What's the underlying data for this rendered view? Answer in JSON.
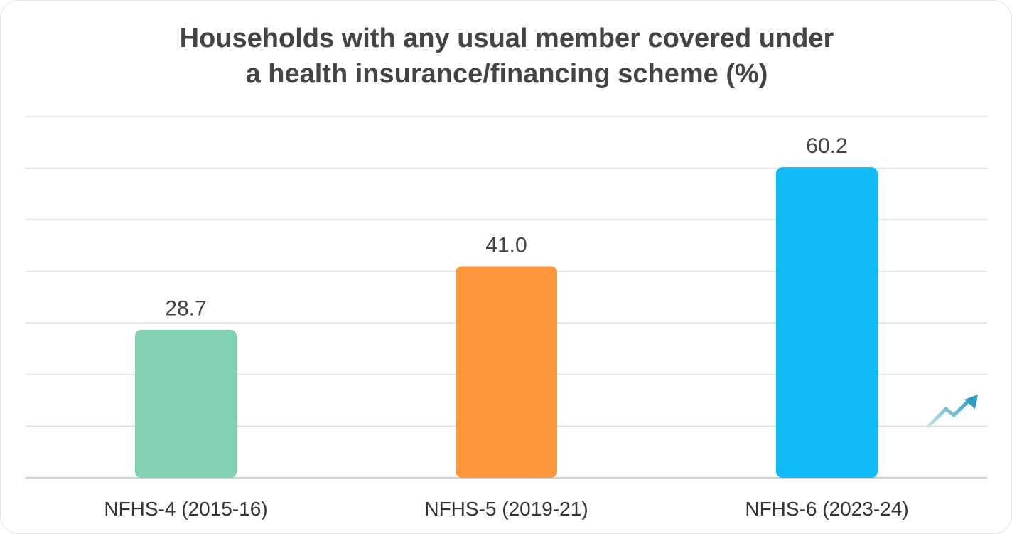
{
  "chart_data": {
    "type": "bar",
    "title": "Households with any usual member covered under\na health insurance/financing scheme (%)",
    "categories": [
      "NFHS-4 (2015-16)",
      "NFHS-5 (2019-21)",
      "NFHS-6 (2023-24)"
    ],
    "values": [
      28.7,
      41.0,
      60.2
    ],
    "value_labels": [
      "28.7",
      "41.0",
      "60.2"
    ],
    "colors": [
      "#82d1b2",
      "#fc973d",
      "#10bbf3"
    ],
    "ylim": [
      0,
      70
    ],
    "grid": true,
    "legend": "none",
    "decoration_icon": "trend-up-arrow-icon"
  }
}
